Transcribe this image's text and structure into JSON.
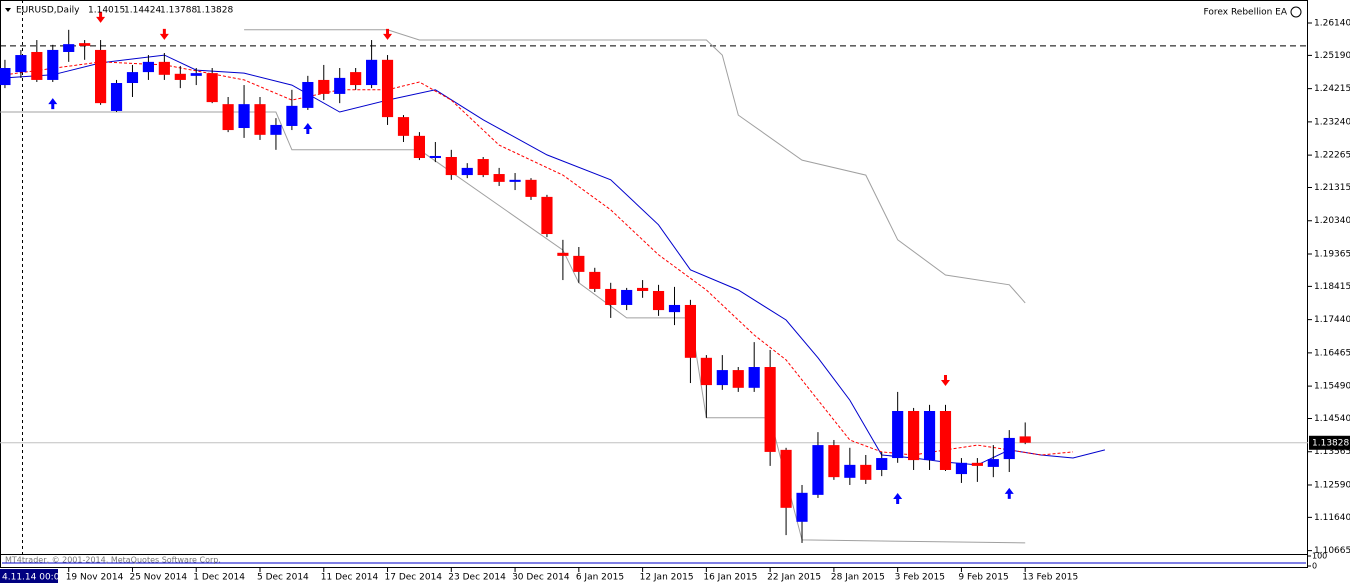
{
  "header": {
    "symbol": "EURUSD,Daily",
    "indicator": "Forex Rebellion EA",
    "copyright": "MT4trader, © 2001-2014, MetaQuotes Software Corp.",
    "cursor_time": "4.11.14 00:00"
  },
  "chart_data": {
    "type": "candlestick",
    "xlim": [
      -0.31,
      81.74
    ],
    "ylim": [
      1.10595,
      1.26756
    ],
    "yticks": [
      {
        "value": 1.2614,
        "label": "1.26140"
      },
      {
        "value": 1.2519,
        "label": "1.25190"
      },
      1.24215,
      {
        "value": 1.2324,
        "label": "1.23240"
      },
      1.22265,
      1.21315,
      {
        "value": 1.2034,
        "label": "1.20340"
      },
      1.19365,
      1.18415,
      {
        "value": 1.1744,
        "label": "1.17440"
      },
      1.16465,
      {
        "value": 1.1549,
        "label": "1.15490"
      },
      {
        "value": 1.1454,
        "label": "1.14540"
      },
      1.13565,
      {
        "value": 1.1259,
        "label": "1.12590"
      },
      {
        "value": 1.1164,
        "label": "1.11640"
      },
      1.10665
    ],
    "xticks": [
      {
        "value": 4,
        "label": "19 Nov 2014"
      },
      {
        "value": 8,
        "label": "25 Nov 2014"
      },
      {
        "value": 12,
        "label": "1 Dec 2014"
      },
      {
        "value": 16,
        "label": "5 Dec 2014"
      },
      {
        "value": 20,
        "label": "11 Dec 2014"
      },
      {
        "value": 24,
        "label": "17 Dec 2014"
      },
      {
        "value": 28,
        "label": "23 Dec 2014"
      },
      {
        "value": 32,
        "label": "30 Dec 2014"
      },
      {
        "value": 36,
        "label": "6 Jan 2015"
      },
      {
        "value": 40,
        "label": "12 Jan 2015"
      },
      {
        "value": 44,
        "label": "16 Jan 2015"
      },
      {
        "value": 48,
        "label": "22 Jan 2015"
      },
      {
        "value": 52,
        "label": "28 Jan 2015"
      },
      {
        "value": 56,
        "label": "3 Feb 2015"
      },
      {
        "value": 60,
        "label": "9 Feb 2015"
      },
      {
        "value": 64,
        "label": "13 Feb 2015"
      }
    ],
    "up_color": "#0000ff",
    "down_color": "#ff0000",
    "wick_color": "#000000",
    "open": [
      1.2432,
      1.247,
      1.2529,
      1.2447,
      1.2529,
      1.2555,
      1.2535,
      1.2356,
      1.2438,
      1.247,
      1.25,
      1.2465,
      1.2459,
      1.2467,
      1.2376,
      1.2306,
      1.2376,
      1.2286,
      1.2312,
      1.2365,
      1.2447,
      1.2406,
      1.247,
      1.2432,
      1.2506,
      1.2338,
      1.2283,
      1.2218,
      1.2221,
      1.2168,
      1.2215,
      1.2171,
      1.2148,
      1.2154,
      1.2104,
      1.194,
      1.1931,
      1.1884,
      1.1834,
      1.1787,
      1.1837,
      1.1828,
      1.1766,
      1.1787,
      1.1632,
      1.1552,
      1.1596,
      1.1544,
      1.1605,
      1.1362,
      1.1151,
      1.123,
      1.1376,
      1.128,
      1.1318,
      1.1303,
      1.1338,
      1.1476,
      1.1332,
      1.1476,
      1.1291,
      1.1324,
      1.1312,
      1.1335,
      1.14015
    ],
    "high": [
      1.2506,
      1.2535,
      1.2564,
      1.255,
      1.2594,
      1.2564,
      1.2564,
      1.2447,
      1.2491,
      1.252,
      1.2526,
      1.2488,
      1.2482,
      1.2482,
      1.2397,
      1.2432,
      1.2397,
      1.2335,
      1.2418,
      1.2459,
      1.2491,
      1.2482,
      1.2482,
      1.2564,
      1.252,
      1.2344,
      1.2294,
      1.2265,
      1.2242,
      1.2203,
      1.2221,
      1.2189,
      1.2174,
      1.2159,
      1.211,
      1.1978,
      1.1957,
      1.1896,
      1.1852,
      1.1837,
      1.186,
      1.1846,
      1.184,
      1.1802,
      1.164,
      1.164,
      1.1605,
      1.1678,
      1.1655,
      1.1368,
      1.1259,
      1.1414,
      1.1391,
      1.1368,
      1.1347,
      1.1356,
      1.1532,
      1.1485,
      1.1494,
      1.1494,
      1.1338,
      1.1338,
      1.1376,
      1.142,
      1.14424
    ],
    "low": [
      1.2423,
      1.2453,
      1.2441,
      1.2441,
      1.25,
      1.2506,
      1.2374,
      1.2353,
      1.2397,
      1.2447,
      1.2447,
      1.2423,
      1.2432,
      1.2379,
      1.2294,
      1.2277,
      1.2271,
      1.2242,
      1.23,
      1.2359,
      1.2388,
      1.2379,
      1.2418,
      1.2423,
      1.2315,
      1.2265,
      1.2212,
      1.2206,
      1.2154,
      1.2159,
      1.2162,
      1.2136,
      1.2124,
      1.2095,
      1.1986,
      1.186,
      1.1852,
      1.1825,
      1.1749,
      1.1772,
      1.1808,
      1.1755,
      1.1728,
      1.1558,
      1.1456,
      1.1538,
      1.1532,
      1.1532,
      1.1315,
      1.1112,
      1.1089,
      1.1221,
      1.1274,
      1.1259,
      1.1262,
      1.1285,
      1.1324,
      1.1303,
      1.1303,
      1.13,
      1.1265,
      1.1268,
      1.1282,
      1.1297,
      1.13788
    ],
    "close": [
      1.2482,
      1.252,
      1.2447,
      1.2535,
      1.2552,
      1.2547,
      1.2379,
      1.2438,
      1.247,
      1.25,
      1.2462,
      1.2447,
      1.2467,
      1.2382,
      1.23,
      1.2376,
      1.2286,
      1.2315,
      1.2371,
      1.2441,
      1.2406,
      1.2453,
      1.2432,
      1.2506,
      1.2338,
      1.2283,
      1.2218,
      1.2224,
      1.2168,
      1.2189,
      1.2168,
      1.2148,
      1.2154,
      1.2104,
      1.1995,
      1.1931,
      1.1884,
      1.1834,
      1.1787,
      1.1831,
      1.1828,
      1.1772,
      1.1787,
      1.1632,
      1.1552,
      1.1596,
      1.1544,
      1.1605,
      1.1356,
      1.1192,
      1.1236,
      1.1376,
      1.1282,
      1.1318,
      1.1274,
      1.1338,
      1.1476,
      1.1332,
      1.1476,
      1.1303,
      1.1324,
      1.1315,
      1.1335,
      1.1397,
      1.13828
    ],
    "lines": [
      {
        "color": "#0000cc",
        "dash": false,
        "x": [
          0,
          3,
          6,
          10,
          12,
          15,
          18,
          21,
          24,
          27,
          30,
          34,
          38,
          41,
          43,
          46,
          49,
          51,
          53,
          55,
          57,
          59,
          61,
          63,
          65,
          67,
          69
        ],
        "values": [
          1.2453,
          1.2462,
          1.2497,
          1.252,
          1.2476,
          1.2467,
          1.2432,
          1.2353,
          1.2388,
          1.2418,
          1.233,
          1.2227,
          1.2154,
          1.2022,
          1.189,
          1.1831,
          1.1743,
          1.1632,
          1.1508,
          1.1347,
          1.1338,
          1.1326,
          1.1318,
          1.1362,
          1.1347,
          1.1338,
          1.1362
        ]
      },
      {
        "color": "#ff0000",
        "dash": true,
        "x": [
          0,
          6,
          10,
          15,
          18,
          21,
          24,
          26,
          28,
          31,
          35,
          38,
          41,
          44,
          47,
          49,
          51,
          53,
          55,
          57,
          59,
          61,
          63,
          65,
          67
        ],
        "values": [
          1.2462,
          1.25,
          1.2491,
          1.2447,
          1.2388,
          1.2418,
          1.2418,
          1.2441,
          1.2388,
          1.2256,
          1.2168,
          1.2066,
          1.1934,
          1.1831,
          1.1699,
          1.1626,
          1.1508,
          1.1391,
          1.1356,
          1.1347,
          1.1362,
          1.1376,
          1.1362,
          1.1347,
          1.1356
        ]
      },
      {
        "color": "#a0a0a0",
        "dash": false,
        "x": [
          15,
          24,
          26,
          44,
          45,
          46,
          50,
          54,
          56,
          59,
          63,
          64
        ],
        "values": [
          1.2594,
          1.2594,
          1.2564,
          1.2564,
          1.252,
          1.2344,
          1.2212,
          1.2168,
          1.1978,
          1.1875,
          1.1846,
          1.1793
        ]
      },
      {
        "color": "#a0a0a0",
        "dash": false,
        "x": [
          -0.31,
          17,
          18,
          26,
          35,
          36,
          39,
          43,
          44,
          48,
          50,
          64
        ],
        "values": [
          1.2353,
          1.2353,
          1.2242,
          1.2242,
          1.1948,
          1.1852,
          1.1749,
          1.1749,
          1.1456,
          1.1456,
          1.1098,
          1.1089
        ]
      }
    ],
    "sell_signals": {
      "color": "#ff0000",
      "x": [
        6,
        10,
        24,
        59
      ],
      "values": [
        1.2629,
        1.2579,
        1.2579,
        1.1564
      ]
    },
    "buy_signals": {
      "color": "#0000ff",
      "x": [
        3,
        19,
        56,
        63
      ],
      "values": [
        1.2379,
        1.2306,
        1.1221,
        1.1236
      ]
    },
    "level_line": 1.2547,
    "sub_ylim": [
      0,
      100
    ],
    "sub_yticks": [
      0,
      100
    ]
  }
}
